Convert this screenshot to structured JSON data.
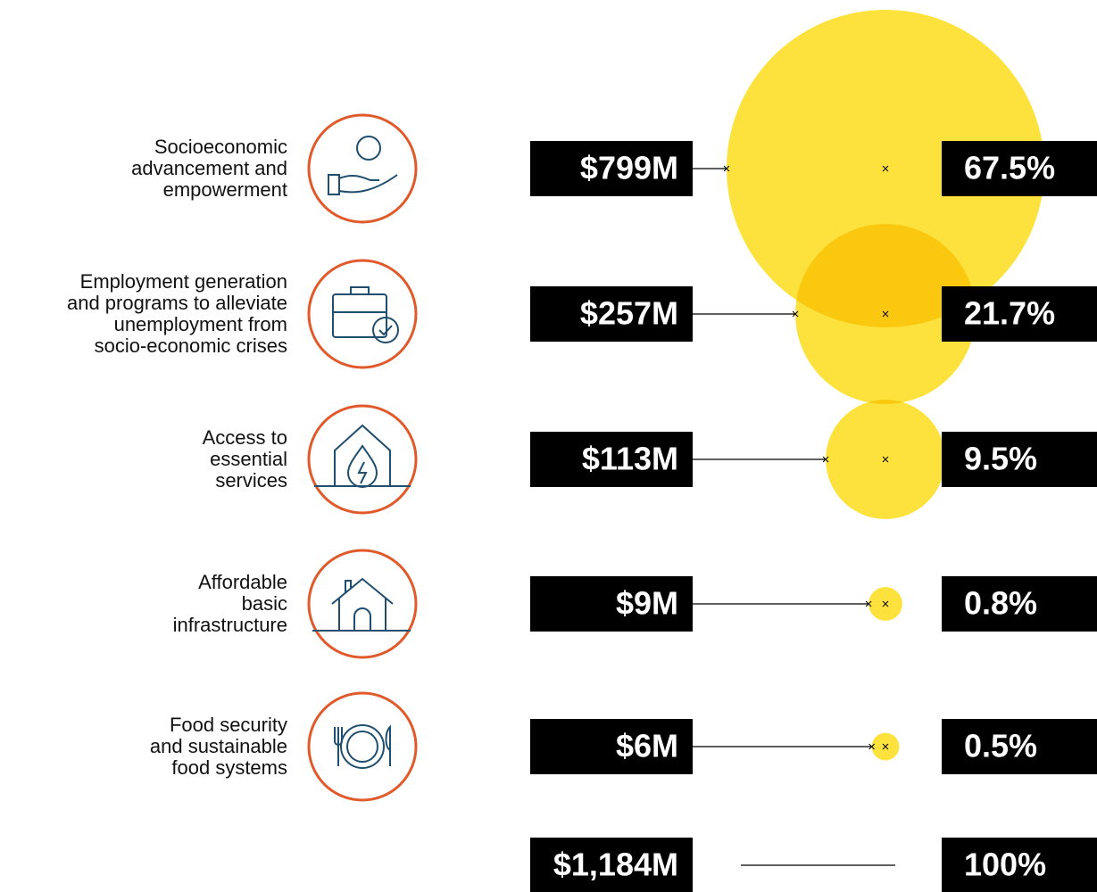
{
  "chart_data": {
    "type": "bubble",
    "categories": [
      "Socioeconomic\nadvancement and\nempowerment",
      "Employment generation\nand programs to alleviate\nunemployment from\nsocio-economic crises",
      "Access to\nessential\nservices",
      "Affordable\nbasic\ninfrastructure",
      "Food security\nand sustainable\nfood systems"
    ],
    "values": [
      799,
      257,
      113,
      9,
      6
    ],
    "value_labels": [
      "$799M",
      "$257M",
      "$113M",
      "$9M",
      "$6M"
    ],
    "shares": [
      67.5,
      21.7,
      9.5,
      0.8,
      0.5
    ],
    "share_labels": [
      "67.5%",
      "21.7%",
      "9.5%",
      "0.8%",
      "0.5%"
    ],
    "total": 1184,
    "total_label": "$1,184M",
    "total_share": 100,
    "total_share_label": "100%",
    "color": "#fde23e",
    "icon_color": "#e05a2b"
  }
}
